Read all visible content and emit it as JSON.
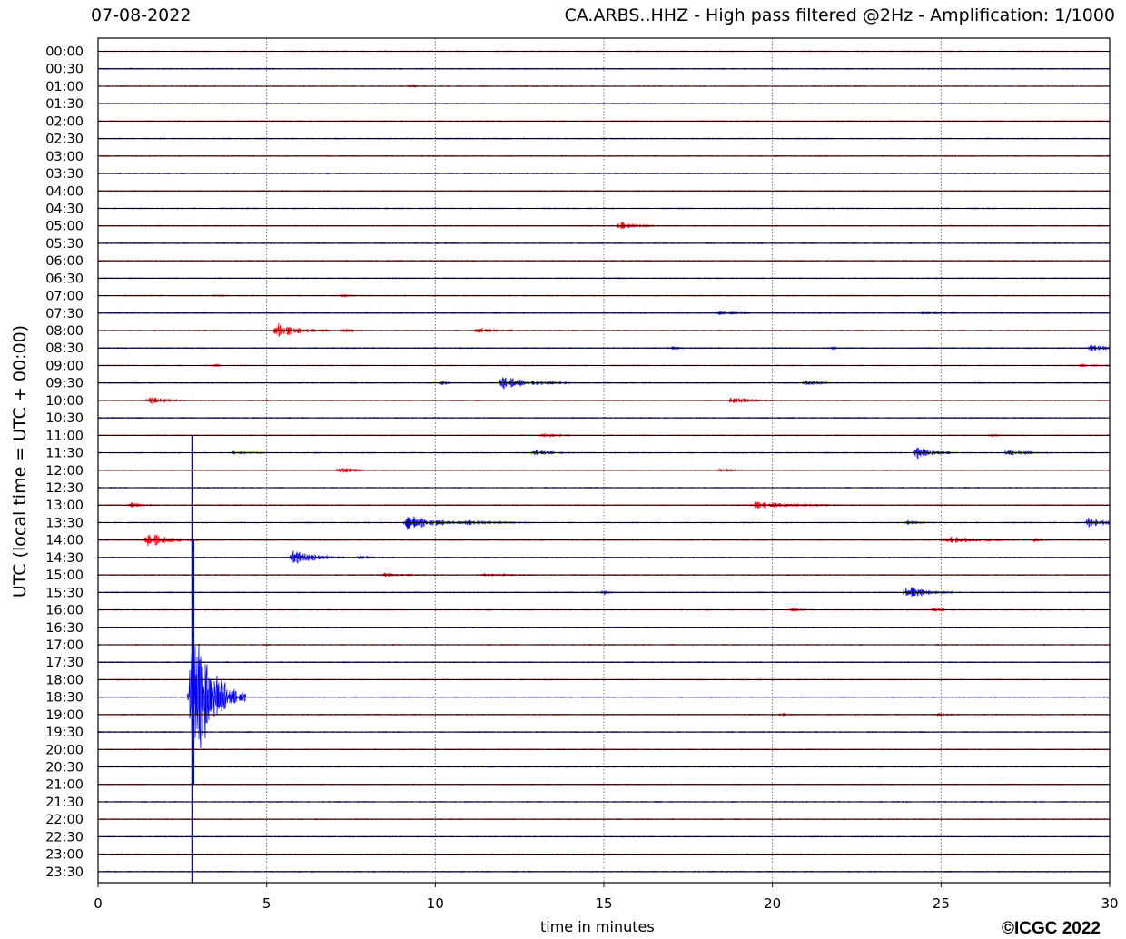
{
  "header": {
    "date": "07-08-2022",
    "title": "CA.ARBS..HHZ - High pass filtered @2Hz - Amplification: 1/1000"
  },
  "footer": {
    "copyright": "©ICGC 2022"
  },
  "colors": {
    "even_rows": "#ff0000",
    "odd_rows": "#0000ff",
    "grid": "#555555",
    "background": "#ffffff"
  },
  "chart_data": {
    "type": "line",
    "title": "CA.ARBS..HHZ - High pass filtered @2Hz - Amplification: 1/1000",
    "xlabel": "time in minutes",
    "ylabel": "UTC (local time = UTC + 00:00)",
    "xlim": [
      0,
      30
    ],
    "xticks": [
      0,
      5,
      10,
      15,
      20,
      25,
      30
    ],
    "grid": "vertical dotted at x ticks",
    "row_labels": [
      "00:00",
      "00:30",
      "01:00",
      "01:30",
      "02:00",
      "02:30",
      "03:00",
      "03:30",
      "04:00",
      "04:30",
      "05:00",
      "05:30",
      "06:00",
      "06:30",
      "07:00",
      "07:30",
      "08:00",
      "08:30",
      "09:00",
      "09:30",
      "10:00",
      "10:30",
      "11:00",
      "11:30",
      "12:00",
      "12:30",
      "13:00",
      "13:30",
      "14:00",
      "14:30",
      "15:00",
      "15:30",
      "16:00",
      "16:30",
      "17:00",
      "17:30",
      "18:00",
      "18:30",
      "19:00",
      "19:30",
      "20:00",
      "20:30",
      "21:00",
      "21:30",
      "22:00",
      "22:30",
      "23:00",
      "23:30"
    ],
    "row_colors": "alternating red (full hour) / blue (half hour)",
    "events": [
      {
        "row": "01:00",
        "minute": 9.3,
        "amplitude": 0.6,
        "duration": 0.5
      },
      {
        "row": "05:00",
        "minute": 15.5,
        "amplitude": 5,
        "duration": 1.2
      },
      {
        "row": "07:00",
        "minute": 3.5,
        "amplitude": 1,
        "duration": 0.4
      },
      {
        "row": "07:00",
        "minute": 7.3,
        "amplitude": 1,
        "duration": 0.4
      },
      {
        "row": "07:30",
        "minute": 18.5,
        "amplitude": 2,
        "duration": 1.0
      },
      {
        "row": "07:30",
        "minute": 24.5,
        "amplitude": 1,
        "duration": 1.0
      },
      {
        "row": "08:00",
        "minute": 5.3,
        "amplitude": 9,
        "duration": 1.6
      },
      {
        "row": "08:00",
        "minute": 7.3,
        "amplitude": 1.5,
        "duration": 0.8
      },
      {
        "row": "08:00",
        "minute": 11.3,
        "amplitude": 2.5,
        "duration": 1.2
      },
      {
        "row": "08:30",
        "minute": 17.0,
        "amplitude": 1.5,
        "duration": 0.6
      },
      {
        "row": "08:30",
        "minute": 21.8,
        "amplitude": 1.5,
        "duration": 0.5
      },
      {
        "row": "08:30",
        "minute": 29.5,
        "amplitude": 5,
        "duration": 0.8
      },
      {
        "row": "09:00",
        "minute": 3.5,
        "amplitude": 1,
        "duration": 0.3
      },
      {
        "row": "09:00",
        "minute": 29.2,
        "amplitude": 1.5,
        "duration": 1.2
      },
      {
        "row": "09:30",
        "minute": 10.2,
        "amplitude": 3,
        "duration": 0.4
      },
      {
        "row": "09:30",
        "minute": 12.0,
        "amplitude": 8,
        "duration": 2.0
      },
      {
        "row": "09:30",
        "minute": 21.0,
        "amplitude": 4,
        "duration": 0.8
      },
      {
        "row": "10:00",
        "minute": 1.5,
        "amplitude": 3.5,
        "duration": 1.5
      },
      {
        "row": "10:00",
        "minute": 18.8,
        "amplitude": 4,
        "duration": 1.2
      },
      {
        "row": "10:00",
        "minute": 5.0,
        "amplitude": 1,
        "duration": 0.4
      },
      {
        "row": "11:00",
        "minute": 13.2,
        "amplitude": 2.5,
        "duration": 1.0
      },
      {
        "row": "11:00",
        "minute": 26.5,
        "amplitude": 1,
        "duration": 0.4
      },
      {
        "row": "11:30",
        "minute": 4.0,
        "amplitude": 1.5,
        "duration": 1.2
      },
      {
        "row": "11:30",
        "minute": 13.0,
        "amplitude": 3,
        "duration": 1.0
      },
      {
        "row": "11:30",
        "minute": 24.3,
        "amplitude": 7,
        "duration": 1.2
      },
      {
        "row": "11:30",
        "minute": 27.0,
        "amplitude": 4,
        "duration": 1.2
      },
      {
        "row": "12:00",
        "minute": 7.2,
        "amplitude": 4,
        "duration": 0.8
      },
      {
        "row": "12:00",
        "minute": 18.5,
        "amplitude": 2,
        "duration": 1.0
      },
      {
        "row": "13:00",
        "minute": 1.0,
        "amplitude": 3,
        "duration": 0.6
      },
      {
        "row": "13:00",
        "minute": 19.5,
        "amplitude": 4,
        "duration": 2.5
      },
      {
        "row": "13:30",
        "minute": 9.2,
        "amplitude": 9,
        "duration": 2.0
      },
      {
        "row": "13:30",
        "minute": 11.0,
        "amplitude": 2,
        "duration": 2.0
      },
      {
        "row": "13:30",
        "minute": 29.4,
        "amplitude": 6,
        "duration": 1.2
      },
      {
        "row": "13:30",
        "minute": 24.0,
        "amplitude": 2,
        "duration": 0.8
      },
      {
        "row": "14:00",
        "minute": 1.5,
        "amplitude": 8,
        "duration": 1.5
      },
      {
        "row": "14:00",
        "minute": 25.2,
        "amplitude": 4,
        "duration": 2.0
      },
      {
        "row": "14:00",
        "minute": 27.8,
        "amplitude": 2,
        "duration": 0.5
      },
      {
        "row": "14:30",
        "minute": 5.8,
        "amplitude": 9,
        "duration": 1.6
      },
      {
        "row": "14:30",
        "minute": 7.8,
        "amplitude": 1.5,
        "duration": 1.0
      },
      {
        "row": "15:00",
        "minute": 8.5,
        "amplitude": 2,
        "duration": 1.2
      },
      {
        "row": "15:00",
        "minute": 11.5,
        "amplitude": 1.5,
        "duration": 1.2
      },
      {
        "row": "15:30",
        "minute": 15.0,
        "amplitude": 2,
        "duration": 0.3
      },
      {
        "row": "15:30",
        "minute": 24.0,
        "amplitude": 8,
        "duration": 1.4
      },
      {
        "row": "16:00",
        "minute": 20.6,
        "amplitude": 2,
        "duration": 0.5
      },
      {
        "row": "16:00",
        "minute": 24.8,
        "amplitude": 2,
        "duration": 0.6
      },
      {
        "row": "18:30",
        "minute": 2.8,
        "amplitude": 150,
        "duration": 1.6
      },
      {
        "row": "19:00",
        "minute": 20.3,
        "amplitude": 1.5,
        "duration": 0.6
      },
      {
        "row": "19:00",
        "minute": 25.0,
        "amplitude": 1.2,
        "duration": 0.6
      }
    ],
    "spike": {
      "minute": 2.8,
      "from_row": "11:00",
      "to_row": "23:30"
    }
  }
}
